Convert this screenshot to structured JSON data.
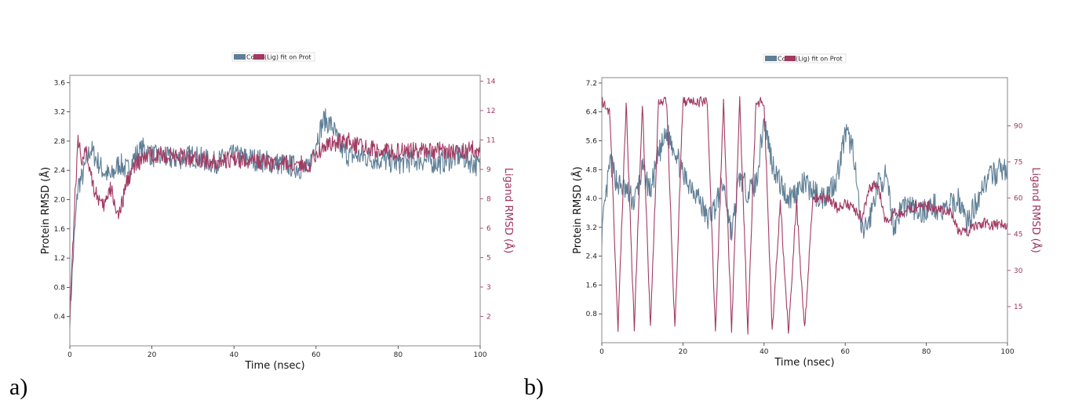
{
  "colors": {
    "protein": "#5f7f96",
    "ligand": "#a23a62",
    "ligand_axis": "#a0345f",
    "frame": "#888888"
  },
  "chart_data": [
    {
      "type": "line",
      "panel_label": "a)",
      "xlabel": "Time (nsec)",
      "ylabel": "Protein RMSD (Å)",
      "y2label": "Ligand RMSD (Å)",
      "legend": {
        "items": [
          "Cα",
          "(Lig) fit on Prot"
        ],
        "placement": "top-center"
      },
      "xlim": [
        0,
        100
      ],
      "ylim": [
        0,
        3.7
      ],
      "y2lim": [
        0,
        13.8
      ],
      "xticks": [
        0,
        20,
        40,
        60,
        80,
        100
      ],
      "yticks": [
        0.4,
        0.8,
        1.2,
        1.6,
        2.0,
        2.4,
        2.8,
        3.2,
        3.6
      ],
      "y2ticks": [
        1.5,
        3.0,
        4.5,
        6.0,
        7.5,
        9.0,
        10.5,
        12.0,
        13.5
      ],
      "grid": false,
      "series": [
        {
          "name": "Cα",
          "axis": "left",
          "x": [
            0,
            1,
            2,
            3,
            4,
            5,
            6,
            8,
            10,
            12,
            14,
            16,
            18,
            20,
            25,
            30,
            35,
            40,
            45,
            50,
            55,
            58,
            60,
            62,
            64,
            66,
            68,
            70,
            75,
            80,
            85,
            90,
            95,
            100
          ],
          "y": [
            0.4,
            1.4,
            2.2,
            2.3,
            2.5,
            2.7,
            2.6,
            2.4,
            2.3,
            2.5,
            2.4,
            2.6,
            2.7,
            2.6,
            2.55,
            2.6,
            2.5,
            2.6,
            2.55,
            2.5,
            2.45,
            2.4,
            2.8,
            3.1,
            3.0,
            2.7,
            2.6,
            2.6,
            2.55,
            2.5,
            2.55,
            2.5,
            2.6,
            2.45
          ]
        },
        {
          "name": "(Lig) fit on Prot",
          "axis": "right",
          "x": [
            0,
            0.5,
            1,
            2,
            3,
            4,
            5,
            6,
            8,
            10,
            12,
            14,
            16,
            18,
            20,
            25,
            30,
            35,
            40,
            45,
            50,
            55,
            58,
            60,
            62,
            64,
            66,
            68,
            70,
            75,
            80,
            85,
            90,
            95,
            100
          ],
          "y": [
            1.5,
            4.0,
            6.5,
            10.5,
            9.5,
            9.8,
            9.0,
            8.0,
            7.0,
            8.0,
            6.5,
            8.5,
            9.2,
            9.5,
            9.8,
            9.7,
            9.6,
            9.4,
            9.5,
            9.4,
            9.3,
            9.3,
            9.2,
            9.8,
            10.2,
            10.3,
            10.4,
            10.5,
            10.2,
            10.0,
            9.9,
            10.0,
            10.0,
            9.9,
            10.1
          ]
        }
      ]
    },
    {
      "type": "line",
      "panel_label": "b)",
      "xlabel": "Time (nsec)",
      "ylabel": "Protein RMSD (Å)",
      "y2label": "Ligand RMSD (Å)",
      "legend": {
        "items": [
          "Cα",
          "(Lig) fit on Prot"
        ],
        "placement": "top-center"
      },
      "xlim": [
        0,
        100
      ],
      "ylim": [
        0,
        7.35
      ],
      "y2lim": [
        0,
        110
      ],
      "xticks": [
        0,
        20,
        40,
        60,
        80,
        100
      ],
      "yticks": [
        0.8,
        1.6,
        2.4,
        3.2,
        4.0,
        4.8,
        5.6,
        6.4,
        7.2
      ],
      "y2ticks": [
        15,
        30,
        45,
        60,
        75,
        90
      ],
      "grid": false,
      "series": [
        {
          "name": "Cα",
          "axis": "left",
          "x": [
            0,
            2,
            4,
            6,
            8,
            10,
            12,
            14,
            16,
            18,
            20,
            22,
            24,
            26,
            28,
            30,
            32,
            34,
            36,
            38,
            40,
            42,
            44,
            46,
            48,
            50,
            52,
            54,
            56,
            58,
            60,
            62,
            64,
            66,
            68,
            70,
            72,
            74,
            76,
            78,
            80,
            82,
            84,
            86,
            88,
            90,
            92,
            94,
            96,
            98,
            100
          ],
          "y": [
            3.0,
            5.0,
            4.4,
            4.2,
            3.9,
            4.8,
            4.2,
            5.2,
            5.8,
            5.4,
            4.6,
            4.4,
            4.0,
            3.4,
            3.8,
            4.4,
            3.0,
            4.6,
            4.2,
            4.4,
            6.2,
            5.0,
            4.4,
            4.0,
            4.2,
            4.4,
            4.2,
            4.0,
            4.2,
            4.6,
            5.8,
            5.4,
            3.0,
            3.4,
            4.4,
            4.6,
            3.2,
            3.8,
            3.8,
            3.6,
            3.7,
            3.8,
            3.6,
            3.8,
            4.0,
            3.3,
            3.8,
            4.4,
            4.6,
            4.8,
            4.8
          ]
        },
        {
          "name": "(Lig) fit on Prot",
          "axis": "right",
          "x": [
            0,
            2,
            4,
            6,
            8,
            10,
            12,
            14,
            16,
            18,
            20,
            22,
            24,
            26,
            28,
            30,
            32,
            34,
            36,
            38,
            40,
            42,
            44,
            46,
            48,
            50,
            52,
            54,
            56,
            58,
            60,
            62,
            64,
            66,
            68,
            70,
            72,
            74,
            76,
            78,
            80,
            82,
            84,
            86,
            88,
            90,
            92,
            94,
            96,
            98,
            100
          ],
          "y": [
            100,
            95,
            5,
            100,
            5,
            100,
            5,
            100,
            100,
            5,
            100,
            100,
            100,
            100,
            5,
            100,
            5,
            100,
            5,
            100,
            100,
            5,
            58,
            5,
            58,
            5,
            60,
            60,
            60,
            56,
            58,
            56,
            52,
            64,
            66,
            50,
            54,
            54,
            56,
            57,
            57,
            56,
            55,
            55,
            46,
            46,
            48,
            50,
            49,
            49,
            49
          ]
        }
      ]
    }
  ]
}
